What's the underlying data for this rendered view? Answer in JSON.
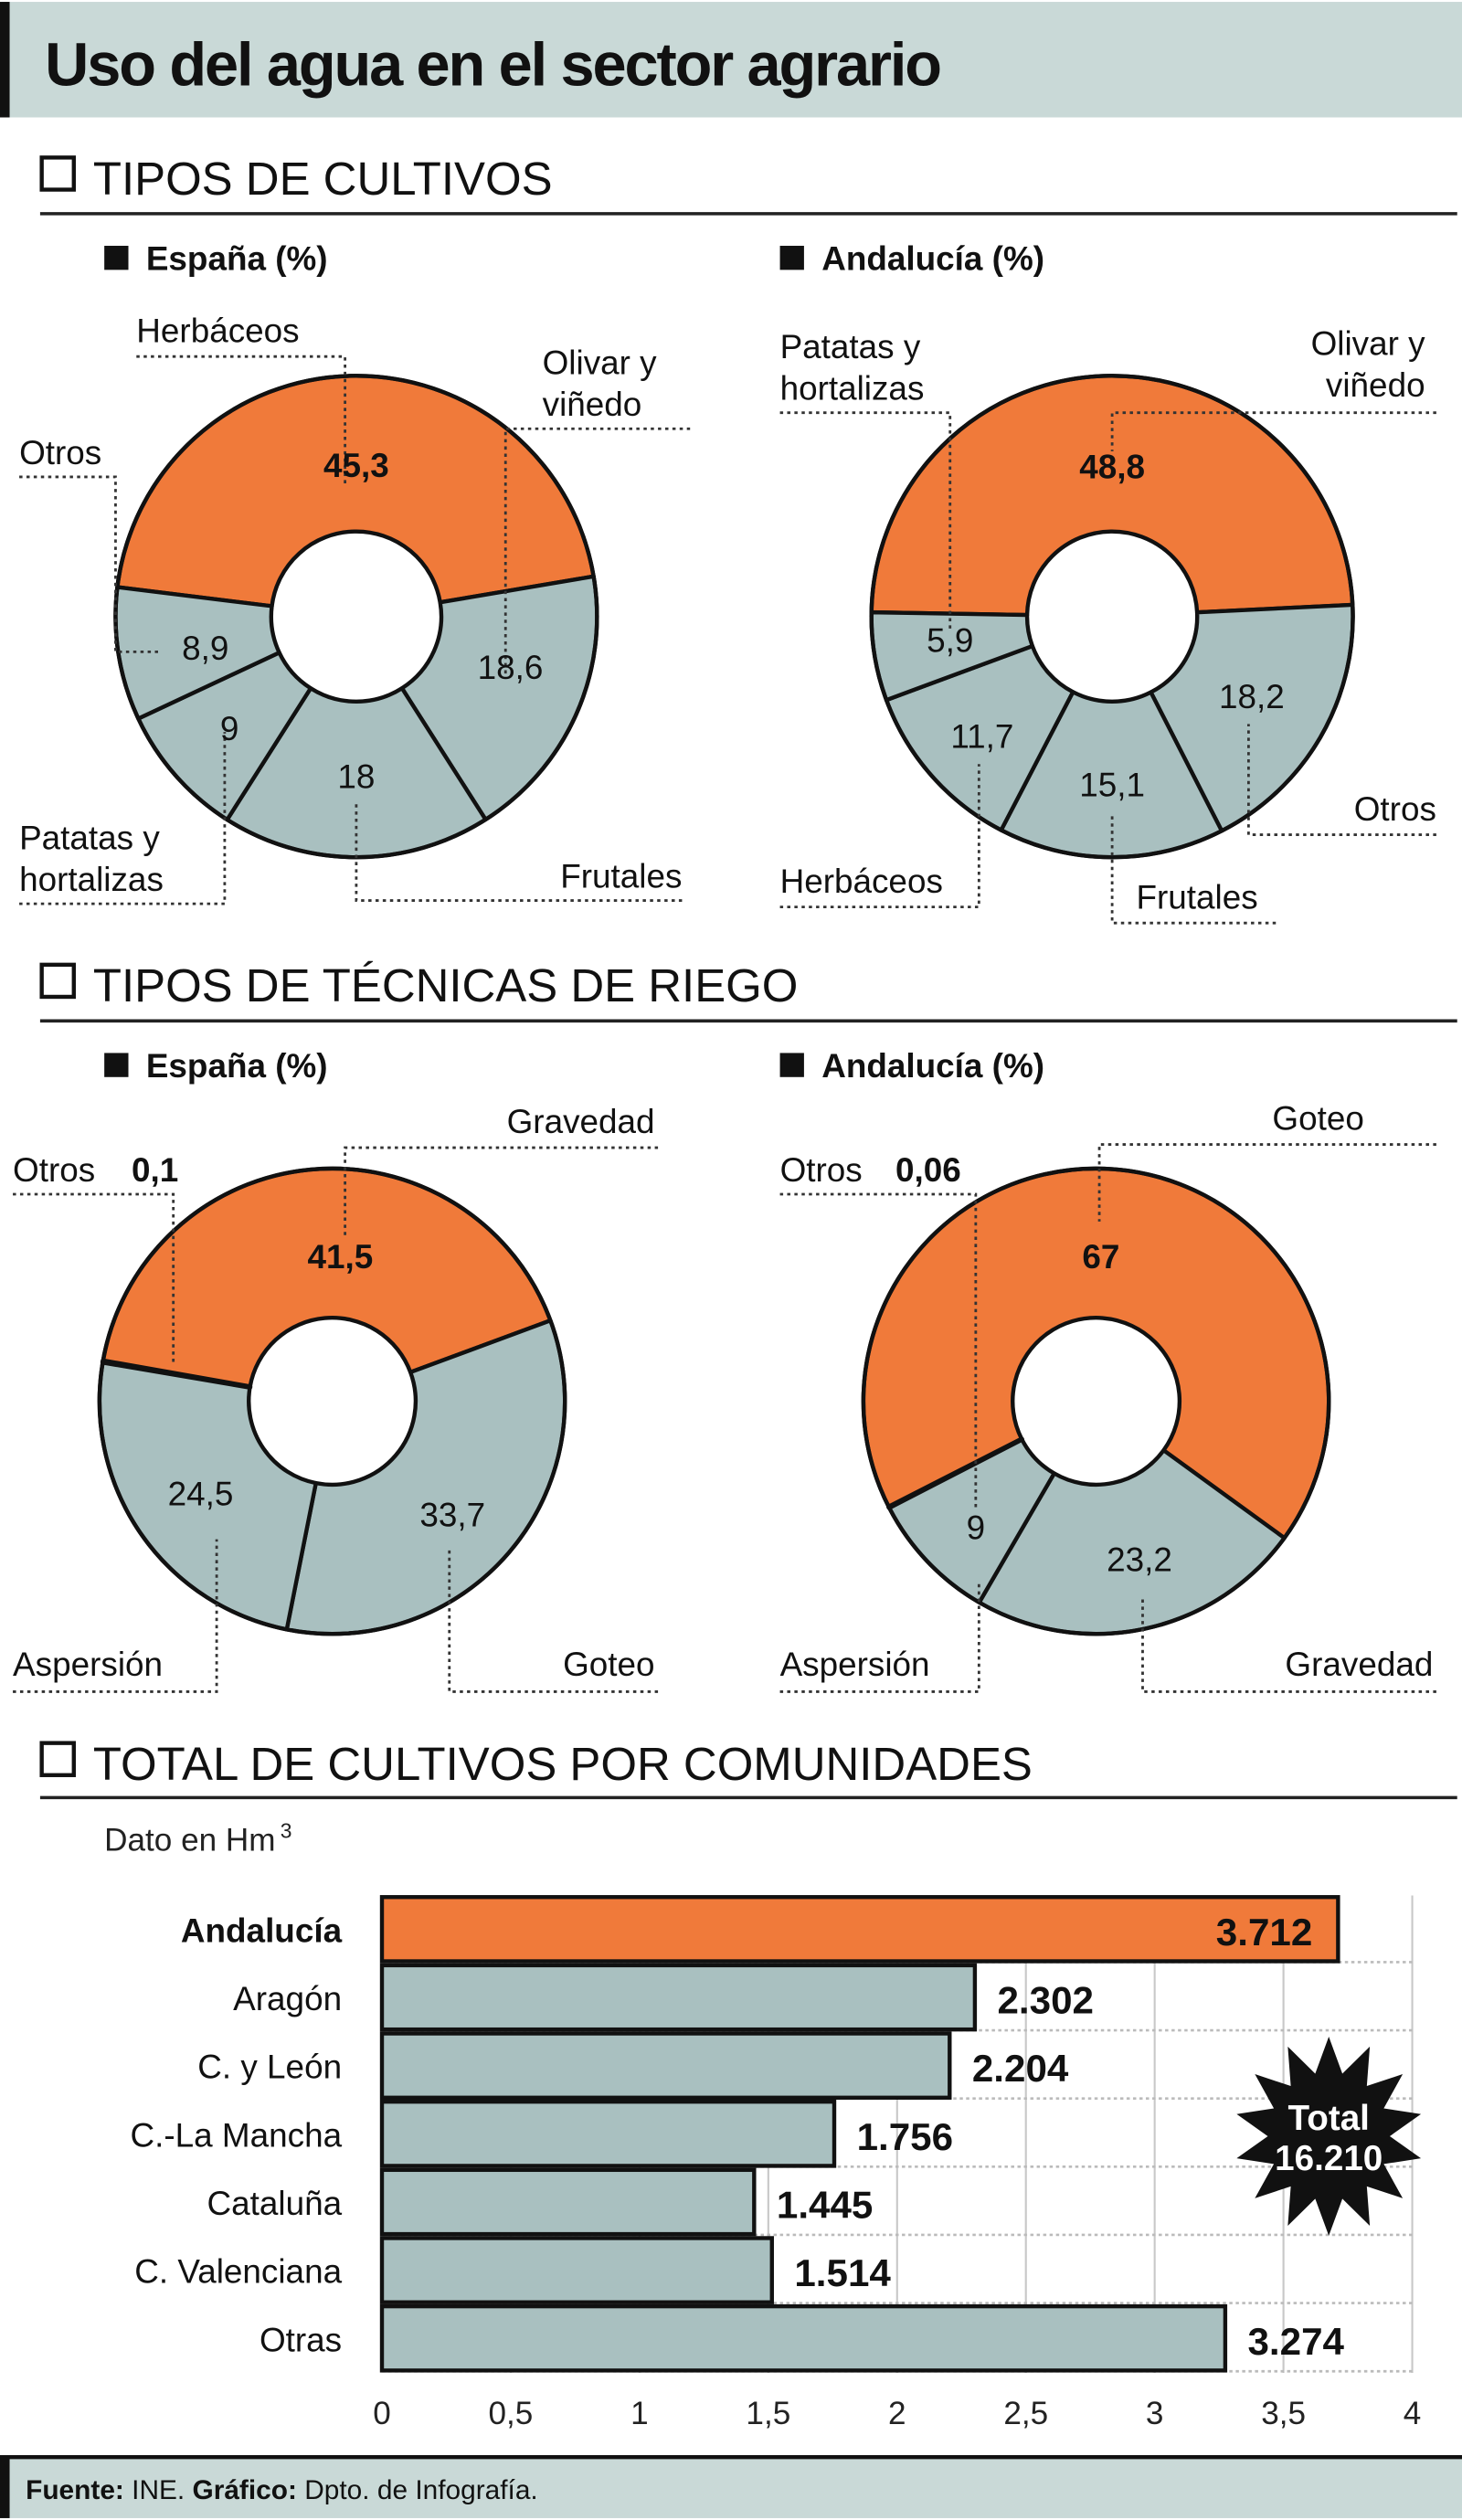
{
  "title": "Uso del agua en el sector agrario",
  "colors": {
    "highlight": "#f07a3a",
    "base": "#a9c0c0",
    "header_bg": "#c9d9d7",
    "outline": "#111111"
  },
  "sections": [
    {
      "title": "TIPOS DE CULTIVOS"
    },
    {
      "title": "TIPOS DE TÉCNICAS DE RIEGO"
    },
    {
      "title": "TOTAL DE CULTIVOS POR COMUNIDADES"
    }
  ],
  "chart_data": [
    {
      "type": "pie",
      "donut": true,
      "section": 0,
      "title": "España (%)",
      "slices": [
        {
          "label": "Herbáceos",
          "value": 45.3,
          "display": "45,3",
          "highlight": true
        },
        {
          "label": "Olivar y viñedo",
          "value": 18.6,
          "display": "18,6"
        },
        {
          "label": "Frutales",
          "value": 18,
          "display": "18"
        },
        {
          "label": "Patatas y hortalizas",
          "value": 9,
          "display": "9"
        },
        {
          "label": "Otros",
          "value": 8.9,
          "display": "8,9"
        }
      ]
    },
    {
      "type": "pie",
      "donut": true,
      "section": 0,
      "title": "Andalucía (%)",
      "slices": [
        {
          "label": "Olivar y viñedo",
          "value": 48.8,
          "display": "48,8",
          "highlight": true
        },
        {
          "label": "Otros",
          "value": 18.2,
          "display": "18,2"
        },
        {
          "label": "Frutales",
          "value": 15.1,
          "display": "15,1"
        },
        {
          "label": "Herbáceos",
          "value": 11.7,
          "display": "11,7"
        },
        {
          "label": "Patatas y hortalizas",
          "value": 5.9,
          "display": "5,9"
        }
      ]
    },
    {
      "type": "pie",
      "donut": true,
      "section": 1,
      "title": "España (%)",
      "slices": [
        {
          "label": "Gravedad",
          "value": 41.5,
          "display": "41,5",
          "highlight": true
        },
        {
          "label": "Goteo",
          "value": 33.7,
          "display": "33,7"
        },
        {
          "label": "Aspersión",
          "value": 24.5,
          "display": "24,5"
        },
        {
          "label": "Otros",
          "value": 0.1,
          "display": "0,1"
        }
      ]
    },
    {
      "type": "pie",
      "donut": true,
      "section": 1,
      "title": "Andalucía (%)",
      "slices": [
        {
          "label": "Goteo",
          "value": 67,
          "display": "67",
          "highlight": true
        },
        {
          "label": "Gravedad",
          "value": 23.2,
          "display": "23,2"
        },
        {
          "label": "Aspersión",
          "value": 9,
          "display": "9"
        },
        {
          "label": "Otros",
          "value": 0.06,
          "display": "0,06"
        }
      ]
    },
    {
      "type": "bar",
      "orientation": "horizontal",
      "section": 2,
      "unit_label": "Dato en Hm",
      "unit_superscript": "3",
      "categories": [
        "Andalucía",
        "Aragón",
        "C. y León",
        "C.-La Mancha",
        "Cataluña",
        "C. Valenciana",
        "Otras"
      ],
      "values": [
        3712,
        2302,
        2204,
        1756,
        1445,
        1514,
        3274
      ],
      "value_labels": [
        "3.712",
        "2.302",
        "2.204",
        "1.756",
        "1.445",
        "1.514",
        "3.274"
      ],
      "highlight_category": "Andalucía",
      "xlim": [
        0,
        4
      ],
      "xtick_values": [
        0,
        0.5,
        1,
        1.5,
        2,
        2.5,
        3,
        3.5,
        4
      ],
      "xtick_labels": [
        "0",
        "0,5",
        "1",
        "1,5",
        "2",
        "2,5",
        "3",
        "3,5",
        "4"
      ],
      "grid": true,
      "badge": {
        "line1": "Total",
        "line2": "16.210"
      }
    }
  ],
  "footer": {
    "source_label": "Fuente:",
    "source": "INE.",
    "graphic_label": "Gráfico:",
    "graphic": "Dpto. de Infografía."
  }
}
